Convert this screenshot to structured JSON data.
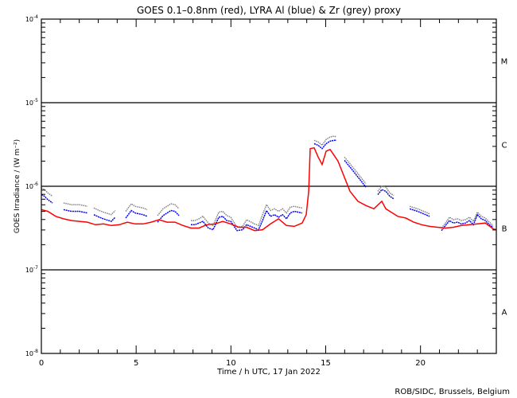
{
  "chart_data": {
    "type": "scatter",
    "title": "GOES 0.1–0.8nm (red), LYRA Al (blue) & Zr (grey) proxy",
    "xlabel": "Time / h UTC, 17 Jan 2022",
    "ylabel": "GOES Irradiance / (W m⁻²)",
    "xlim": [
      0,
      24
    ],
    "ylim_log10": [
      -8,
      -4
    ],
    "y_scale": "log",
    "x_ticks": [
      "0",
      "5",
      "10",
      "15",
      "20"
    ],
    "y_ticks": [
      {
        "base": "10",
        "exp": "-4"
      },
      {
        "base": "10",
        "exp": "-5"
      },
      {
        "base": "10",
        "exp": "-6"
      },
      {
        "base": "10",
        "exp": "-7"
      },
      {
        "base": "10",
        "exp": "-8"
      }
    ],
    "flare_class_lines_log10": [
      -5,
      -6,
      -7
    ],
    "flare_classes": [
      {
        "label": "M",
        "level_log10": -4.5
      },
      {
        "label": "C",
        "level_log10": -5.5
      },
      {
        "label": "B",
        "level_log10": -6.5
      },
      {
        "label": "A",
        "level_log10": -7.5
      }
    ],
    "colors": {
      "red": "#ff0000",
      "blue": "#0000ff",
      "grey": "#808080"
    },
    "red_series": {
      "name": "GOES 0.1-0.8nm",
      "x": [
        0,
        0.34,
        0.76,
        1.17,
        1.59,
        2.01,
        2.43,
        2.85,
        3.27,
        3.69,
        4.11,
        4.53,
        4.95,
        5.37,
        5.79,
        6.21,
        6.63,
        7.05,
        7.47,
        7.89,
        8.31,
        8.73,
        9.15,
        9.57,
        9.99,
        10.41,
        10.83,
        11.25,
        11.67,
        12.09,
        12.51,
        12.93,
        13.34,
        13.76,
        13.97,
        14.1,
        14.18,
        14.39,
        14.6,
        14.81,
        15.02,
        15.23,
        15.44,
        15.65,
        15.86,
        16.07,
        16.28,
        16.7,
        17.12,
        17.54,
        17.96,
        18.17,
        18.38,
        18.8,
        19.22,
        19.64,
        20.06,
        20.48,
        20.9,
        21.32,
        21.74,
        22.16,
        22.58,
        23.0,
        23.42,
        23.83,
        24.0
      ],
      "log10_irradiance": [
        -6.28,
        -6.3,
        -6.36,
        -6.39,
        -6.41,
        -6.42,
        -6.43,
        -6.46,
        -6.45,
        -6.47,
        -6.46,
        -6.43,
        -6.45,
        -6.45,
        -6.43,
        -6.4,
        -6.43,
        -6.43,
        -6.47,
        -6.5,
        -6.5,
        -6.46,
        -6.45,
        -6.42,
        -6.45,
        -6.49,
        -6.49,
        -6.53,
        -6.52,
        -6.45,
        -6.39,
        -6.47,
        -6.48,
        -6.44,
        -6.34,
        -6.06,
        -5.55,
        -5.54,
        -5.65,
        -5.74,
        -5.58,
        -5.56,
        -5.63,
        -5.7,
        -5.82,
        -5.94,
        -6.06,
        -6.18,
        -6.23,
        -6.27,
        -6.18,
        -6.27,
        -6.3,
        -6.36,
        -6.38,
        -6.43,
        -6.46,
        -6.48,
        -6.49,
        -6.5,
        -6.49,
        -6.47,
        -6.46,
        -6.45,
        -6.44,
        -6.51,
        -6.52
      ]
    },
    "lyra_segments": [
      {
        "x": [
          0,
          0.17,
          0.34,
          0.59
        ],
        "blue": [
          -6.1,
          -6.12,
          -6.16,
          -6.2
        ],
        "grey": [
          -6.02,
          -6.04,
          -6.08,
          -6.12
        ]
      },
      {
        "x": [
          1.17,
          1.59,
          2.01,
          2.43
        ],
        "blue": [
          -6.28,
          -6.3,
          -6.3,
          -6.32
        ],
        "grey": [
          -6.2,
          -6.22,
          -6.22,
          -6.24
        ]
      },
      {
        "x": [
          2.77,
          3.06,
          3.27,
          3.69,
          3.9
        ],
        "blue": [
          -6.34,
          -6.37,
          -6.39,
          -6.42,
          -6.37
        ],
        "grey": [
          -6.26,
          -6.29,
          -6.31,
          -6.34,
          -6.29
        ]
      },
      {
        "x": [
          4.45,
          4.74,
          4.95,
          5.37,
          5.58
        ],
        "blue": [
          -6.38,
          -6.29,
          -6.32,
          -6.34,
          -6.36
        ],
        "grey": [
          -6.3,
          -6.21,
          -6.24,
          -6.26,
          -6.28
        ]
      },
      {
        "x": [
          6.13,
          6.42,
          6.84,
          7.05,
          7.26
        ],
        "blue": [
          -6.43,
          -6.35,
          -6.29,
          -6.3,
          -6.35
        ],
        "grey": [
          -6.35,
          -6.27,
          -6.21,
          -6.22,
          -6.27
        ]
      },
      {
        "x": [
          7.89,
          8.1,
          8.31,
          8.52,
          8.81,
          9.06,
          9.36,
          9.57,
          9.78,
          9.99,
          10.32,
          10.62,
          10.83,
          11.25,
          11.46,
          11.67,
          11.88,
          12.09,
          12.3,
          12.51,
          12.72,
          12.93,
          13.13,
          13.34,
          13.55,
          13.76
        ],
        "blue": [
          -6.46,
          -6.46,
          -6.44,
          -6.42,
          -6.5,
          -6.52,
          -6.37,
          -6.36,
          -6.41,
          -6.42,
          -6.53,
          -6.52,
          -6.46,
          -6.5,
          -6.52,
          -6.41,
          -6.29,
          -6.36,
          -6.34,
          -6.37,
          -6.34,
          -6.39,
          -6.32,
          -6.3,
          -6.31,
          -6.32
        ],
        "grey": [
          -6.41,
          -6.41,
          -6.39,
          -6.36,
          -6.44,
          -6.47,
          -6.31,
          -6.3,
          -6.35,
          -6.37,
          -6.49,
          -6.48,
          -6.4,
          -6.45,
          -6.47,
          -6.34,
          -6.22,
          -6.29,
          -6.27,
          -6.3,
          -6.27,
          -6.32,
          -6.25,
          -6.24,
          -6.25,
          -6.26
        ]
      },
      {
        "x": [
          14.39,
          14.6,
          14.81,
          15.02,
          15.23,
          15.44,
          15.57
        ],
        "blue": [
          -5.49,
          -5.51,
          -5.55,
          -5.49,
          -5.46,
          -5.45,
          -5.45
        ],
        "grey": [
          -5.45,
          -5.47,
          -5.51,
          -5.44,
          -5.41,
          -5.4,
          -5.41
        ]
      },
      {
        "x": [
          15.99,
          16.28,
          16.7,
          17.12
        ],
        "blue": [
          -5.69,
          -5.77,
          -5.89,
          -6.01
        ],
        "grey": [
          -5.65,
          -5.73,
          -5.85,
          -5.97
        ]
      },
      {
        "x": [
          17.75,
          17.96,
          18.17,
          18.38,
          18.59
        ],
        "blue": [
          -6.1,
          -6.04,
          -6.06,
          -6.12,
          -6.15
        ],
        "grey": [
          -6.06,
          -6.0,
          -6.01,
          -6.08,
          -6.11
        ]
      },
      {
        "x": [
          19.43,
          19.85,
          20.27,
          20.48
        ],
        "blue": [
          -6.27,
          -6.3,
          -6.34,
          -6.36
        ],
        "grey": [
          -6.24,
          -6.27,
          -6.31,
          -6.33
        ]
      },
      {
        "x": [
          21.11,
          21.32,
          21.53,
          21.74,
          21.95,
          22.16,
          22.37,
          22.58,
          22.79,
          23.0,
          23.21,
          23.42,
          23.63,
          23.83
        ],
        "blue": [
          -6.53,
          -6.47,
          -6.41,
          -6.44,
          -6.43,
          -6.45,
          -6.44,
          -6.41,
          -6.46,
          -6.34,
          -6.39,
          -6.41,
          -6.46,
          -6.49
        ],
        "grey": [
          -6.5,
          -6.44,
          -6.37,
          -6.4,
          -6.39,
          -6.41,
          -6.4,
          -6.37,
          -6.42,
          -6.31,
          -6.36,
          -6.38,
          -6.43,
          -6.47
        ]
      }
    ],
    "credit": "ROB/SIDC, Brussels, Belgium"
  }
}
